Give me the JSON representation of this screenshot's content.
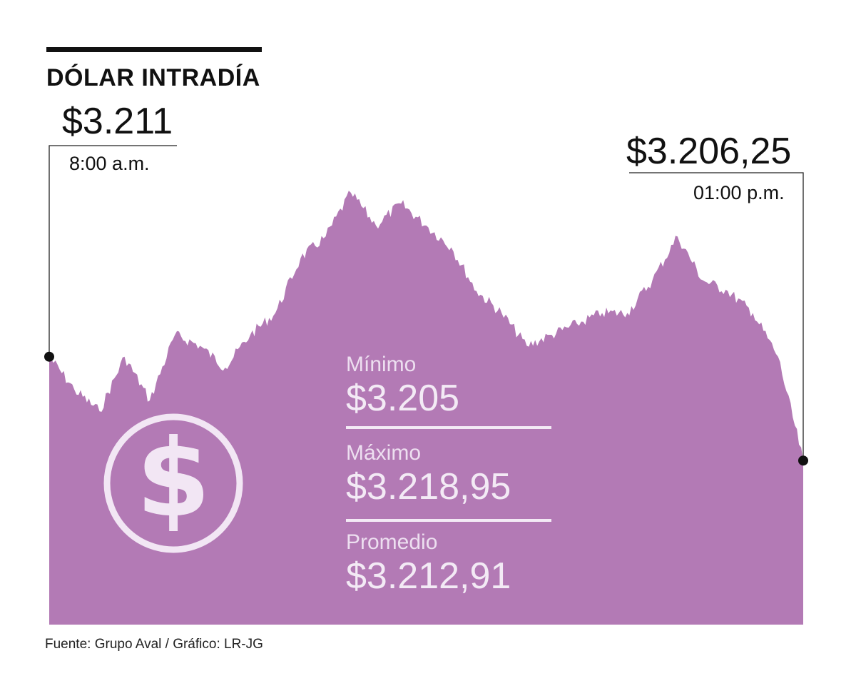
{
  "title": "DÓLAR INTRADÍA",
  "open": {
    "value": "$3.211",
    "time": "8:00 a.m."
  },
  "close": {
    "value": "$3.206,25",
    "time": "01:00 p.m."
  },
  "stats": [
    {
      "label": "Mínimo",
      "value": "$3.205"
    },
    {
      "label": "Máximo",
      "value": "$3.218,95"
    },
    {
      "label": "Promedio",
      "value": "$3.212,91"
    }
  ],
  "source": "Fuente: Grupo Aval / Gráfico: LR-JG",
  "icon": "dollar-circle-icon",
  "colors": {
    "area": "#b37ab5",
    "icon": "#f2e6f4",
    "marker": "#111111"
  },
  "chart_data": {
    "type": "area",
    "title": "DÓLAR INTRADÍA",
    "xlabel": "",
    "ylabel": "",
    "x": [
      "8:00",
      "8:10",
      "8:20",
      "8:30",
      "8:40",
      "8:50",
      "9:00",
      "9:10",
      "9:20",
      "9:30",
      "9:40",
      "9:50",
      "10:00",
      "10:10",
      "10:20",
      "10:30",
      "10:40",
      "10:50",
      "11:00",
      "11:10",
      "11:20",
      "11:30",
      "11:40",
      "11:50",
      "12:00",
      "12:10",
      "12:20",
      "12:30",
      "12:40",
      "12:50",
      "13:00"
    ],
    "values": [
      3211,
      3209.5,
      3208.5,
      3211,
      3209,
      3212,
      3211.5,
      3210.5,
      3212,
      3213,
      3215.5,
      3216.5,
      3218.5,
      3217,
      3218,
      3217,
      3216,
      3214,
      3213,
      3211.5,
      3212,
      3212.5,
      3213,
      3213,
      3214.5,
      3216.5,
      3214.5,
      3214,
      3213,
      3211,
      3206.25
    ],
    "x_range": [
      "8:00 a.m.",
      "01:00 p.m."
    ],
    "ylim": [
      3198.75,
      3224.7
    ],
    "grid": false,
    "legend": "none",
    "annotations": [
      {
        "x": "8:00",
        "label": "$3.211"
      },
      {
        "x": "13:00",
        "label": "$3.206,25"
      }
    ]
  }
}
